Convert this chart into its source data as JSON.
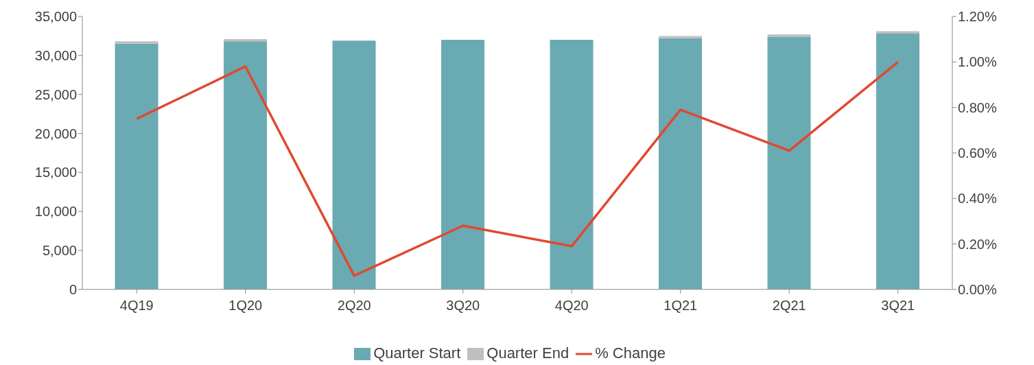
{
  "chart_data": {
    "type": "bar",
    "stacked": true,
    "categories": [
      "4Q19",
      "1Q20",
      "2Q20",
      "3Q20",
      "4Q20",
      "1Q21",
      "2Q21",
      "3Q21"
    ],
    "series": [
      {
        "name": "Quarter Start",
        "color": "#6aaab3",
        "values": [
          31500,
          31800,
          31900,
          32000,
          32000,
          32200,
          32400,
          32800
        ]
      },
      {
        "name": "Quarter End",
        "color": "#bfbfbf",
        "values": [
          300,
          300,
          0,
          0,
          0,
          300,
          300,
          300
        ]
      },
      {
        "name": "% Change",
        "type": "line",
        "axis": "y2",
        "color": "#e0492f",
        "values": [
          0.75,
          0.98,
          0.06,
          0.28,
          0.19,
          0.79,
          0.61,
          1.0
        ]
      }
    ],
    "ylim": [
      0,
      35000
    ],
    "yticks": [
      0,
      {
        "value": 5000,
        "label": "5,000"
      },
      {
        "value": 10000,
        "label": "10,000"
      },
      {
        "value": 15000,
        "label": "15,000"
      },
      {
        "value": 20000,
        "label": "20,000"
      },
      {
        "value": 25000,
        "label": "25,000"
      },
      {
        "value": 30000,
        "label": "30,000"
      },
      {
        "value": 35000,
        "label": "35,000"
      }
    ],
    "y2lim": [
      0,
      1.2
    ],
    "y2ticks": [
      {
        "value": 0,
        "label": "0.00%"
      },
      {
        "value": 0.2,
        "label": "0.20%"
      },
      {
        "value": 0.4,
        "label": "0.40%"
      },
      {
        "value": 0.6,
        "label": "0.60%"
      },
      {
        "value": 0.8,
        "label": "0.80%"
      },
      {
        "value": 1.0,
        "label": "1.00%"
      },
      {
        "value": 1.2,
        "label": "1.20%"
      }
    ],
    "grid": false,
    "legend": "bottom",
    "marker": "none"
  }
}
